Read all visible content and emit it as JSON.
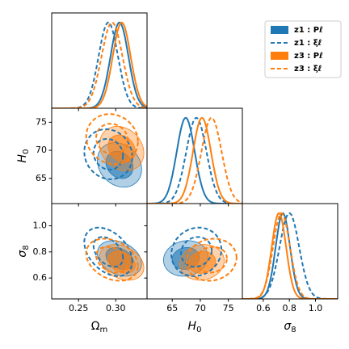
{
  "chart_data": {
    "type": "corner",
    "legend": "upper right",
    "parameters": [
      {
        "symbol": "Ω",
        "subscript": "m",
        "lim": [
          0.214,
          0.342
        ],
        "ticks": [
          0.25,
          {
            "value": 0.3,
            "label": "0.30"
          }
        ]
      },
      {
        "symbol": "H",
        "subscript": "0",
        "lim": [
          60.5,
          77.5
        ],
        "ticks": [
          65,
          70,
          75
        ]
      },
      {
        "symbol": "σ",
        "subscript": "8",
        "lim": [
          0.44,
          1.17
        ],
        "ticks": [
          0.6,
          0.8,
          {
            "value": 1,
            "label": "1.0"
          }
        ]
      }
    ],
    "series": [
      {
        "name": "z1 : Pℓ",
        "color": "#1f77b4",
        "style": "filled",
        "mean": [
          0.305,
          67.4,
          0.75
        ],
        "sd": [
          0.012,
          1.6,
          0.055
        ],
        "corr": [
          -0.2,
          -0.3,
          0.1
        ]
      },
      {
        "name": "z1 : ξℓ",
        "color": "#1f77b4",
        "style": "dashed",
        "mean": [
          0.29,
          69.3,
          0.8
        ],
        "sd": [
          0.013,
          1.8,
          0.075
        ],
        "corr": [
          -0.1,
          -0.4,
          0.1
        ]
      },
      {
        "name": "z3 : Pℓ",
        "color": "#ff7f0e",
        "style": "filled",
        "mean": [
          0.308,
          70.3,
          0.72
        ],
        "sd": [
          0.012,
          1.6,
          0.055
        ],
        "corr": [
          -0.2,
          -0.3,
          0.1
        ]
      },
      {
        "name": "z3 : ξℓ",
        "color": "#ff7f0e",
        "style": "dashed",
        "mean": [
          0.295,
          72.0,
          0.74
        ],
        "sd": [
          0.014,
          1.8,
          0.065
        ],
        "corr": [
          -0.1,
          -0.3,
          0.1
        ]
      }
    ]
  }
}
